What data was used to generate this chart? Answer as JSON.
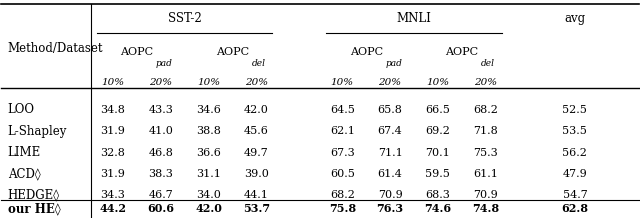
{
  "methods": [
    "LOO",
    "L-Shapley",
    "LIME",
    "ACD◊",
    "HEDGE◊"
  ],
  "our_method": "our HE◊",
  "data": [
    [
      34.8,
      43.3,
      34.6,
      42.0,
      64.5,
      65.8,
      66.5,
      68.2,
      52.5
    ],
    [
      31.9,
      41.0,
      38.8,
      45.6,
      62.1,
      67.4,
      69.2,
      71.8,
      53.5
    ],
    [
      32.8,
      46.8,
      36.6,
      49.7,
      67.3,
      71.1,
      70.1,
      75.3,
      56.2
    ],
    [
      31.9,
      38.3,
      31.1,
      39.0,
      60.5,
      61.4,
      59.5,
      61.1,
      47.9
    ],
    [
      34.3,
      46.7,
      34.0,
      44.1,
      68.2,
      70.9,
      68.3,
      70.9,
      54.7
    ]
  ],
  "our_data": [
    44.2,
    60.6,
    42.0,
    53.7,
    75.8,
    76.3,
    74.6,
    74.8,
    62.8
  ],
  "bg_color": "#ffffff",
  "text_color": "#000000"
}
